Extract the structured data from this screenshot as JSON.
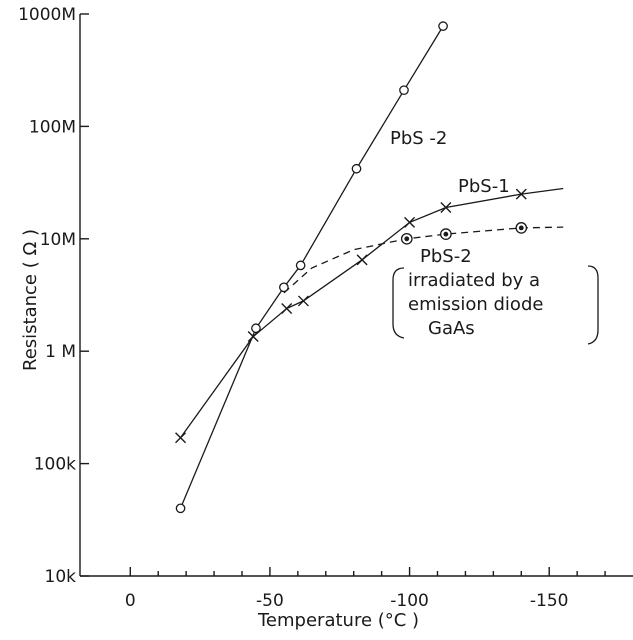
{
  "chart_data": {
    "type": "line",
    "xlabel": "Temperature (°C )",
    "ylabel": "Resistance ( Ω )",
    "x_tick_labels": [
      "0",
      "-50",
      "-100",
      "-150"
    ],
    "x_tick_values": [
      0,
      -50,
      -100,
      -150
    ],
    "y_tick_labels": [
      "10k",
      "100k",
      "1 M",
      "10M",
      "100M",
      "1000M"
    ],
    "y_tick_values": [
      10000,
      100000,
      1000000,
      10000000,
      100000000,
      1000000000
    ],
    "y_scale": "log",
    "xlim": [
      18,
      -180
    ],
    "ylim": [
      10000,
      1000000000
    ],
    "grid": false,
    "series": [
      {
        "name": "PbS-2",
        "marker": "circle",
        "line_style": "solid",
        "x": [
          -18,
          -45,
          -55,
          -61,
          -81,
          -98,
          -112
        ],
        "y": [
          40000,
          1600000,
          3700000,
          5800000,
          42000000,
          210000000,
          780000000
        ]
      },
      {
        "name": "PbS-1",
        "marker": "cross",
        "line_style": "solid",
        "x": [
          -18,
          -44,
          -56,
          -62,
          -83,
          -100,
          -113,
          -140,
          -155
        ],
        "y": [
          170000,
          1350000,
          2400000,
          2800000,
          6500000,
          14000000,
          19000000,
          25000000,
          28000000
        ],
        "point_markers": [
          true,
          true,
          true,
          true,
          true,
          true,
          true,
          true,
          false
        ]
      },
      {
        "name": "PbS-2 irradiated by a emission diode GaAs",
        "marker": "double-circle",
        "line_style": "dashed",
        "x": [
          -55,
          -65,
          -80,
          -99,
          -113,
          -140,
          -155
        ],
        "y": [
          3300000,
          5500000,
          8000000,
          10000000,
          11000000,
          12500000,
          12700000
        ],
        "point_markers": [
          false,
          false,
          false,
          true,
          true,
          true,
          false
        ]
      }
    ],
    "annotations": {
      "pbs2": "PbS -2",
      "pbs1": "PbS-1",
      "pbs2b": "PbS-2",
      "irr1": "irradiated by a",
      "irr2": "emission diode",
      "irr3": "GaAs"
    }
  }
}
